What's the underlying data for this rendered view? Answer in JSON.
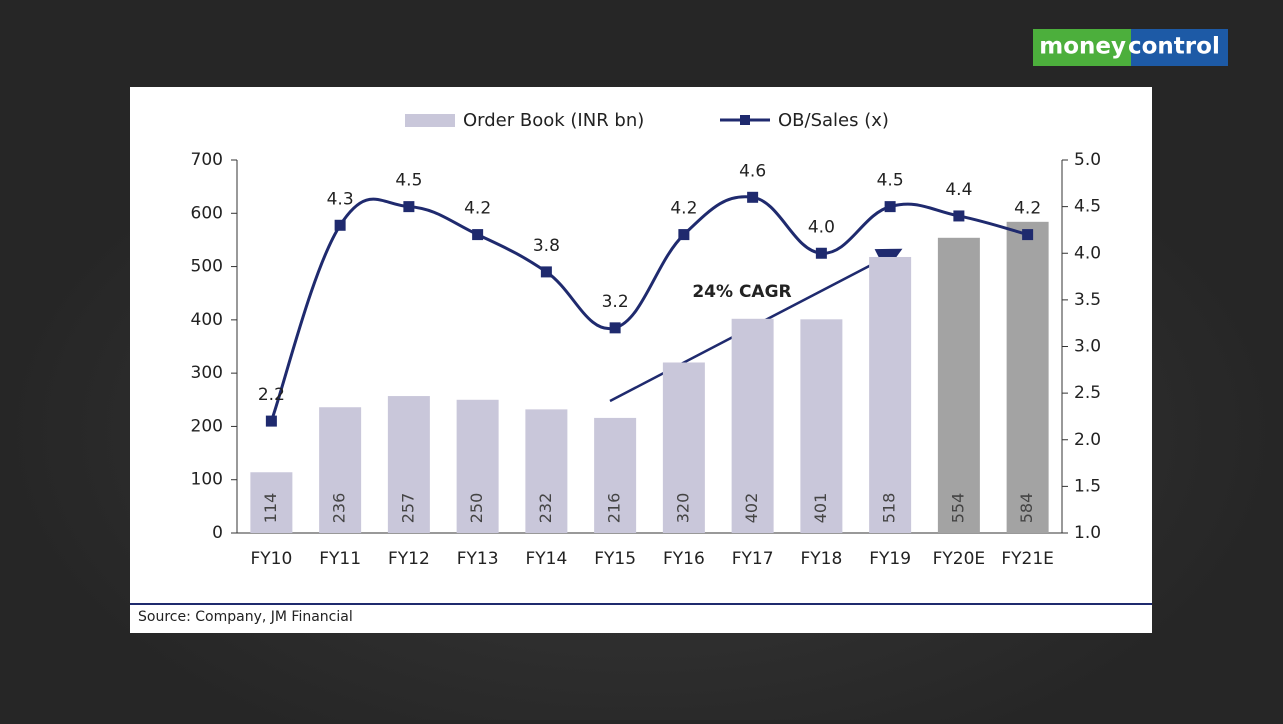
{
  "logo": {
    "left": "money",
    "right": "control"
  },
  "chart_data": {
    "type": "bar_line",
    "categories": [
      "FY10",
      "FY11",
      "FY12",
      "FY13",
      "FY14",
      "FY15",
      "FY16",
      "FY17",
      "FY18",
      "FY19",
      "FY20E",
      "FY21E"
    ],
    "series": [
      {
        "name": "Order Book (INR bn)",
        "type": "bar",
        "axis": "y",
        "color": "#c9c7da",
        "colors": [
          "#c9c7da",
          "#c9c7da",
          "#c9c7da",
          "#c9c7da",
          "#c9c7da",
          "#c9c7da",
          "#c9c7da",
          "#c9c7da",
          "#c9c7da",
          "#c9c7da",
          "#a3a3a3",
          "#a3a3a3"
        ],
        "values": [
          114,
          236,
          257,
          250,
          232,
          216,
          320,
          402,
          401,
          518,
          554,
          584
        ]
      },
      {
        "name": "OB/Sales (x)",
        "type": "line",
        "axis": "y2",
        "color": "#1f2a6e",
        "values": [
          2.2,
          4.3,
          4.5,
          4.2,
          3.8,
          3.2,
          4.2,
          4.6,
          4.0,
          4.5,
          4.4,
          4.2
        ],
        "value_labels": [
          "2.2",
          "4.3",
          "4.5",
          "4.2",
          "3.8",
          "3.2",
          "4.2",
          "4.6",
          "4.0",
          "4.5",
          "4.4",
          "4.2"
        ]
      }
    ],
    "ylim": [
      0,
      700
    ],
    "yticks": [
      0,
      100,
      200,
      300,
      400,
      500,
      600,
      700
    ],
    "y2lim": [
      1,
      5
    ],
    "y2ticks": [
      {
        "value": 1,
        "label": "1.0"
      },
      {
        "value": 1.5,
        "label": "1.5"
      },
      {
        "value": 2,
        "label": "2.0"
      },
      {
        "value": 2.5,
        "label": "2.5"
      },
      {
        "value": 3,
        "label": "3.0"
      },
      {
        "value": 3.5,
        "label": "3.5"
      },
      {
        "value": 4,
        "label": "4.0"
      },
      {
        "value": 4.5,
        "label": "4.5"
      },
      {
        "value": 5,
        "label": "5.0"
      }
    ],
    "grid": false,
    "annotation": "24% CAGR",
    "source": "Source: Company, JM Financial"
  }
}
